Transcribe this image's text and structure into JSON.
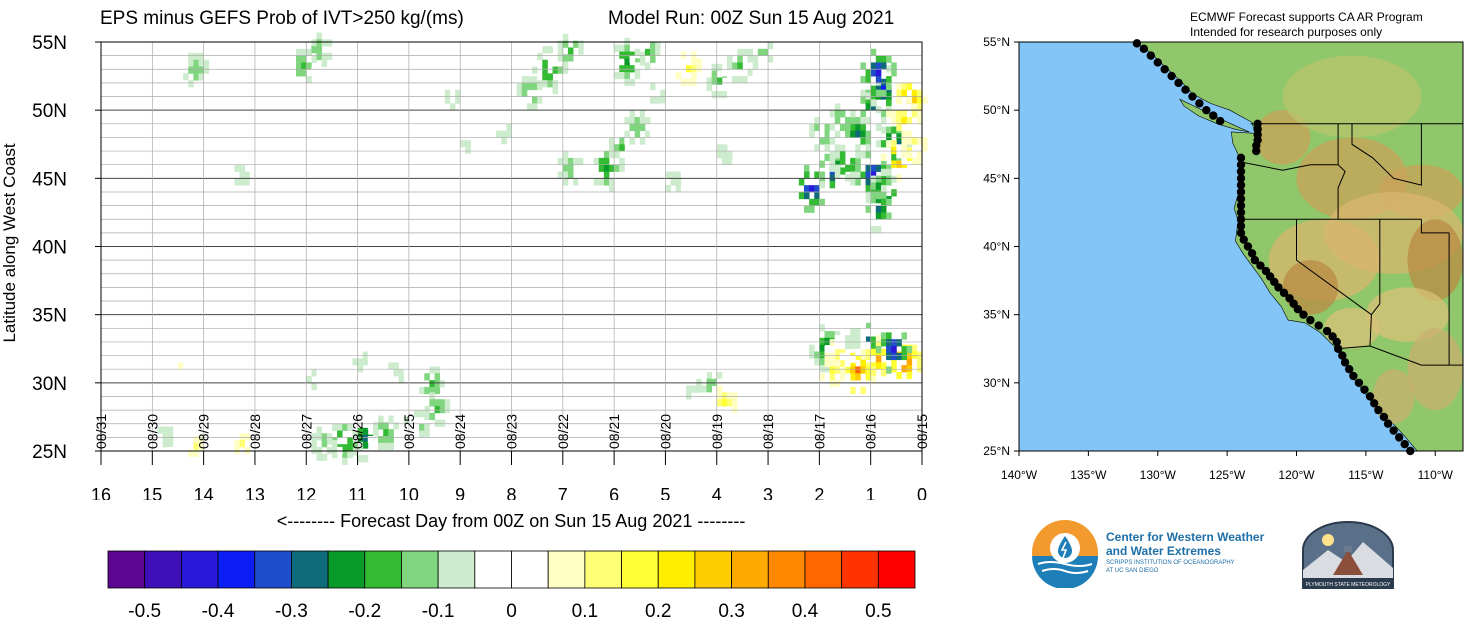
{
  "title_left": "EPS minus GEFS Prob of IVT>250 kg/(ms)",
  "title_right": "Model Run: 00Z Sun 15 Aug 2021",
  "map_note": [
    "ECMWF Forecast supports CA AR Program",
    "Intended for research purposes only"
  ],
  "logos": {
    "cw3e": [
      "Center for Western Weather",
      "and Water Extremes"
    ],
    "cw3e_sub": [
      "SCRIPPS INSTITUTION OF OCEANOGRAPHY",
      "AT UC SAN DIEGO"
    ],
    "psu": "PLYMOUTH STATE METEOROLOGY"
  },
  "chart_data": [
    {
      "type": "heatmap",
      "xlabel": "<-------- Forecast Day from 00Z on Sun 15 Aug 2021 --------",
      "ylabel": "Latitude along West Coast",
      "xlim": [
        16,
        0
      ],
      "ylim": [
        25,
        55
      ],
      "x_ticks": [
        "16",
        "15",
        "14",
        "13",
        "12",
        "11",
        "10",
        "9",
        "8",
        "7",
        "6",
        "5",
        "4",
        "3",
        "2",
        "1",
        "0"
      ],
      "y_ticks": [
        "25N",
        "30N",
        "35N",
        "40N",
        "45N",
        "50N",
        "55N"
      ],
      "date_labels": [
        "08/31",
        "08/30",
        "08/29",
        "08/28",
        "08/27",
        "08/26",
        "08/25",
        "08/24",
        "08/23",
        "08/22",
        "08/21",
        "08/20",
        "08/19",
        "08/18",
        "08/17",
        "08/16",
        "08/15"
      ],
      "grid": true,
      "blobs": [
        {
          "x": 10.9,
          "y": 26.2,
          "v": -0.3
        },
        {
          "x": 11.3,
          "y": 26.0,
          "v": -0.25
        },
        {
          "x": 10.5,
          "y": 26.6,
          "v": -0.2
        },
        {
          "x": 11.7,
          "y": 25.8,
          "v": -0.15
        },
        {
          "x": 9.6,
          "y": 30.2,
          "v": -0.2
        },
        {
          "x": 9.5,
          "y": 28.3,
          "v": -0.2
        },
        {
          "x": 9.9,
          "y": 27.0,
          "v": -0.15
        },
        {
          "x": 10.3,
          "y": 31.0,
          "v": -0.1
        },
        {
          "x": 11.0,
          "y": 31.8,
          "v": -0.1
        },
        {
          "x": 12.0,
          "y": 30.5,
          "v": -0.1
        },
        {
          "x": 12.8,
          "y": 33.5,
          "v": -0.05
        },
        {
          "x": 13.8,
          "y": 30.5,
          "v": -0.05
        },
        {
          "x": 14.8,
          "y": 26.3,
          "v": -0.1
        },
        {
          "x": 14.2,
          "y": 25.6,
          "v": 0.1
        },
        {
          "x": 13.3,
          "y": 25.8,
          "v": 0.1
        },
        {
          "x": 15.3,
          "y": 38.5,
          "v": -0.05
        },
        {
          "x": 11.3,
          "y": 38.5,
          "v": -0.05
        },
        {
          "x": 13.3,
          "y": 45.5,
          "v": -0.1
        },
        {
          "x": 12.8,
          "y": 47.2,
          "v": -0.05
        },
        {
          "x": 14.2,
          "y": 53.2,
          "v": -0.15
        },
        {
          "x": 12.1,
          "y": 53.5,
          "v": -0.2
        },
        {
          "x": 11.8,
          "y": 54.7,
          "v": -0.15
        },
        {
          "x": 10.3,
          "y": 51.5,
          "v": -0.05
        },
        {
          "x": 9.2,
          "y": 51.0,
          "v": -0.1
        },
        {
          "x": 8.9,
          "y": 47.8,
          "v": -0.1
        },
        {
          "x": 8.2,
          "y": 48.5,
          "v": -0.1
        },
        {
          "x": 7.7,
          "y": 51.5,
          "v": -0.2
        },
        {
          "x": 7.3,
          "y": 53.2,
          "v": -0.25
        },
        {
          "x": 6.9,
          "y": 54.6,
          "v": -0.2
        },
        {
          "x": 6.9,
          "y": 46.0,
          "v": -0.15
        },
        {
          "x": 6.2,
          "y": 46.0,
          "v": -0.25
        },
        {
          "x": 5.9,
          "y": 47.5,
          "v": -0.2
        },
        {
          "x": 5.6,
          "y": 49.0,
          "v": -0.15
        },
        {
          "x": 5.2,
          "y": 51.5,
          "v": -0.1
        },
        {
          "x": 5.8,
          "y": 53.8,
          "v": -0.25
        },
        {
          "x": 5.4,
          "y": 54.5,
          "v": -0.2
        },
        {
          "x": 4.6,
          "y": 53.3,
          "v": 0.15
        },
        {
          "x": 4.0,
          "y": 52.4,
          "v": -0.2
        },
        {
          "x": 3.6,
          "y": 53.5,
          "v": -0.2
        },
        {
          "x": 3.2,
          "y": 54.5,
          "v": -0.15
        },
        {
          "x": 3.9,
          "y": 47.0,
          "v": -0.1
        },
        {
          "x": 4.9,
          "y": 45.0,
          "v": -0.1
        },
        {
          "x": 4.1,
          "y": 29.8,
          "v": -0.2
        },
        {
          "x": 4.5,
          "y": 29.8,
          "v": -0.1
        },
        {
          "x": 3.9,
          "y": 28.8,
          "v": 0.15
        },
        {
          "x": 2.2,
          "y": 44.5,
          "v": -0.45
        },
        {
          "x": 1.8,
          "y": 45.8,
          "v": -0.35
        },
        {
          "x": 1.5,
          "y": 46.5,
          "v": -0.25
        },
        {
          "x": 2.0,
          "y": 48.5,
          "v": -0.2
        },
        {
          "x": 1.3,
          "y": 48.5,
          "v": -0.3
        },
        {
          "x": 1.6,
          "y": 49.5,
          "v": -0.2
        },
        {
          "x": 1.0,
          "y": 50.5,
          "v": -0.3
        },
        {
          "x": 0.8,
          "y": 51.8,
          "v": -0.4
        },
        {
          "x": 0.9,
          "y": 53.0,
          "v": -0.45
        },
        {
          "x": 0.3,
          "y": 51.0,
          "v": 0.35
        },
        {
          "x": 1.0,
          "y": 45.5,
          "v": -0.45
        },
        {
          "x": 0.8,
          "y": 44.2,
          "v": -0.35
        },
        {
          "x": 0.9,
          "y": 43.0,
          "v": -0.3
        },
        {
          "x": 0.6,
          "y": 47.8,
          "v": -0.35
        },
        {
          "x": 0.5,
          "y": 46.8,
          "v": 0.35
        },
        {
          "x": 0.2,
          "y": 47.5,
          "v": 0.15
        },
        {
          "x": 0.4,
          "y": 49.5,
          "v": 0.2
        },
        {
          "x": 1.9,
          "y": 32.8,
          "v": -0.3
        },
        {
          "x": 1.6,
          "y": 32.2,
          "v": 0.2
        },
        {
          "x": 1.2,
          "y": 32.9,
          "v": -0.45
        },
        {
          "x": 0.9,
          "y": 32.0,
          "v": 0.3
        },
        {
          "x": 0.4,
          "y": 31.8,
          "v": 0.45
        },
        {
          "x": 1.3,
          "y": 31.2,
          "v": 0.4
        },
        {
          "x": 0.6,
          "y": 32.7,
          "v": -0.45
        },
        {
          "x": 1.8,
          "y": 31.2,
          "v": 0.15
        },
        {
          "x": 1.4,
          "y": 33.5,
          "v": -0.1
        },
        {
          "x": 14.6,
          "y": 31.5,
          "v": 0.1
        },
        {
          "x": 8.0,
          "y": 25.5,
          "v": -0.05
        },
        {
          "x": 7.0,
          "y": 26.0,
          "v": -0.05
        }
      ]
    },
    {
      "type": "heatmap",
      "role": "colorbar",
      "boundaries": [
        -0.55,
        -0.5,
        -0.45,
        -0.4,
        -0.35,
        -0.3,
        -0.25,
        -0.2,
        -0.15,
        -0.1,
        -0.05,
        0,
        0.05,
        0.1,
        0.15,
        0.2,
        0.25,
        0.3,
        0.35,
        0.4,
        0.45,
        0.5,
        0.55
      ],
      "colors": [
        "#5c0592",
        "#3f10b8",
        "#2a18d9",
        "#0a1ef5",
        "#1f4ecc",
        "#0f6a7a",
        "#0a9a2a",
        "#33bb33",
        "#7fd67f",
        "#cdeccd",
        "#ffffff",
        "#ffffff",
        "#ffffc4",
        "#ffff73",
        "#ffff33",
        "#ffee00",
        "#ffcc00",
        "#ffaa00",
        "#ff8800",
        "#ff6600",
        "#ff3300",
        "#ff0000"
      ],
      "tick_labels": [
        "-0.5",
        "-0.4",
        "-0.3",
        "-0.2",
        "-0.1",
        "0",
        "0.1",
        "0.2",
        "0.3",
        "0.4",
        "0.5"
      ]
    },
    {
      "type": "map",
      "role": "station-map",
      "lon_ticks": [
        "140°W",
        "135°W",
        "130°W",
        "125°W",
        "120°W",
        "115°W",
        "110°W"
      ],
      "lat_ticks": [
        "25°N",
        "30°N",
        "35°N",
        "40°N",
        "45°N",
        "50°N",
        "55°N"
      ],
      "lon_range": [
        -140,
        -108
      ],
      "lat_range": [
        25,
        55
      ],
      "points": [
        [
          -131.5,
          54.9
        ],
        [
          -131.0,
          54.5
        ],
        [
          -130.5,
          54.0
        ],
        [
          -130.0,
          53.5
        ],
        [
          -129.5,
          53.0
        ],
        [
          -129.0,
          52.5
        ],
        [
          -128.5,
          52.0
        ],
        [
          -128.0,
          51.5
        ],
        [
          -127.5,
          51.0
        ],
        [
          -127.0,
          50.5
        ],
        [
          -126.5,
          50.0
        ],
        [
          -126.0,
          49.6
        ],
        [
          -125.5,
          49.2
        ],
        [
          -122.8,
          49.0
        ],
        [
          -122.8,
          48.6
        ],
        [
          -122.8,
          48.2
        ],
        [
          -122.8,
          47.8
        ],
        [
          -122.9,
          47.4
        ],
        [
          -122.9,
          47.0
        ],
        [
          -124.0,
          46.5
        ],
        [
          -124.0,
          46.0
        ],
        [
          -124.0,
          45.5
        ],
        [
          -124.0,
          45.0
        ],
        [
          -124.0,
          44.5
        ],
        [
          -124.0,
          44.0
        ],
        [
          -124.0,
          43.5
        ],
        [
          -124.0,
          43.0
        ],
        [
          -124.0,
          42.5
        ],
        [
          -124.0,
          42.0
        ],
        [
          -124.0,
          41.5
        ],
        [
          -124.0,
          41.0
        ],
        [
          -123.8,
          40.5
        ],
        [
          -123.5,
          40.0
        ],
        [
          -123.2,
          39.5
        ],
        [
          -123.0,
          39.0
        ],
        [
          -122.6,
          38.6
        ],
        [
          -122.2,
          38.2
        ],
        [
          -121.9,
          37.8
        ],
        [
          -121.6,
          37.4
        ],
        [
          -121.3,
          37.0
        ],
        [
          -120.9,
          36.6
        ],
        [
          -120.5,
          36.2
        ],
        [
          -120.2,
          35.8
        ],
        [
          -119.9,
          35.4
        ],
        [
          -119.5,
          35.0
        ],
        [
          -119.0,
          34.6
        ],
        [
          -118.4,
          34.2
        ],
        [
          -117.8,
          33.8
        ],
        [
          -117.4,
          33.4
        ],
        [
          -117.1,
          33.0
        ],
        [
          -117.0,
          32.5
        ],
        [
          -116.7,
          32.0
        ],
        [
          -116.5,
          31.5
        ],
        [
          -116.2,
          31.0
        ],
        [
          -115.9,
          30.5
        ],
        [
          -115.5,
          30.0
        ],
        [
          -115.1,
          29.5
        ],
        [
          -114.7,
          29.0
        ],
        [
          -114.4,
          28.5
        ],
        [
          -114.1,
          28.0
        ],
        [
          -113.7,
          27.5
        ],
        [
          -113.4,
          27.0
        ],
        [
          -113.0,
          26.5
        ],
        [
          -112.6,
          26.0
        ],
        [
          -112.2,
          25.5
        ],
        [
          -111.8,
          25.0
        ]
      ]
    }
  ]
}
